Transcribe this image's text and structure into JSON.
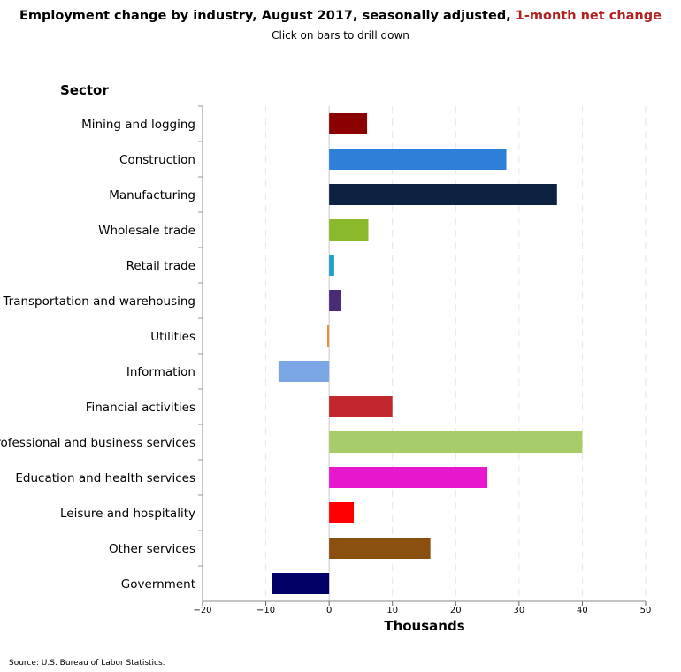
{
  "title": {
    "main": "Employment change by industry, August 2017, seasonally adjusted,",
    "highlight": "1-month net change"
  },
  "subtitle": "Click on bars to drill down",
  "source": "Source: U.S. Bureau of Labor Statistics.",
  "chart_data": {
    "type": "bar",
    "orientation": "horizontal",
    "ylabel": "Sector",
    "xlabel": "Thousands",
    "xlim": [
      -20,
      50
    ],
    "xticks": [
      -20,
      -10,
      0,
      10,
      20,
      30,
      40,
      50
    ],
    "grid": true,
    "categories": [
      "Mining and logging",
      "Construction",
      "Manufacturing",
      "Wholesale trade",
      "Retail trade",
      "Transportation and warehousing",
      "Utilities",
      "Information",
      "Financial activities",
      "Professional and business services",
      "Education and health services",
      "Leisure and hospitality",
      "Other services",
      "Government"
    ],
    "values": [
      6,
      28,
      36,
      6.2,
      0.8,
      1.8,
      -0.3,
      -8,
      10,
      40,
      25,
      3.9,
      16,
      -9
    ],
    "colors": [
      "#8b0000",
      "#2e7fd8",
      "#0d2240",
      "#8ab92b",
      "#1fa0c8",
      "#4a2b78",
      "#f0923c",
      "#7aa6e6",
      "#c1272d",
      "#a6cd6a",
      "#e617cc",
      "#ff0000",
      "#8b4f0f",
      "#000066"
    ]
  }
}
